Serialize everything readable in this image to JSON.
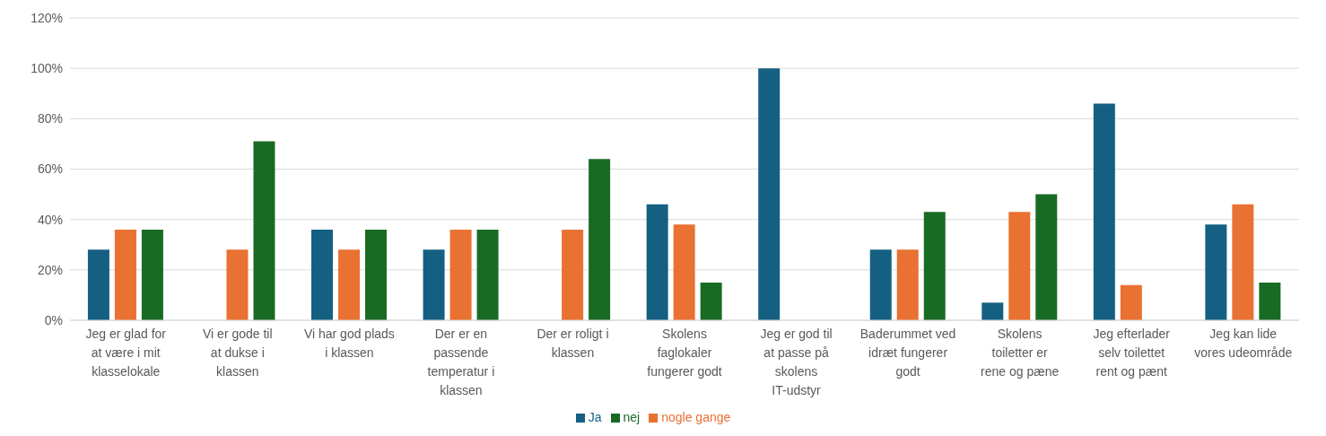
{
  "chart_data": {
    "type": "bar",
    "categories": [
      "Jeg er glad for at være i mit klasselokale",
      "Vi er gode til at dukse i klassen",
      "Vi har god plads i klassen",
      "Der er en passende temperatur i klassen",
      "Der er roligt i klassen",
      "Skolens faglokaler fungerer godt",
      "Jeg er god til at passe på skolens IT-udstyr",
      "Baderummet ved idræt fungerer godt",
      "Skolens toiletter er rene og pæne",
      "Jeg efterlader selv toilettet rent og pænt",
      "Jeg kan lide vores udeområde"
    ],
    "series": [
      {
        "name": "Ja",
        "color": "#156082",
        "values": [
          28,
          0,
          36,
          28,
          0,
          46,
          100,
          28,
          7,
          86,
          38
        ]
      },
      {
        "name": "nogle gange",
        "color": "#e97132",
        "values": [
          36,
          28,
          28,
          36,
          36,
          38,
          0,
          28,
          43,
          14,
          46
        ]
      },
      {
        "name": "nej",
        "color": "#196b24",
        "values": [
          36,
          71,
          36,
          36,
          64,
          15,
          0,
          43,
          50,
          0,
          15
        ]
      }
    ],
    "ylim": [
      0,
      120
    ],
    "yticks": [
      {
        "value": 0,
        "label": "0%"
      },
      {
        "value": 20,
        "label": "20%"
      },
      {
        "value": 40,
        "label": "40%"
      },
      {
        "value": 60,
        "label": "60%"
      },
      {
        "value": 80,
        "label": "80%"
      },
      {
        "value": 100,
        "label": "100%"
      },
      {
        "value": 120,
        "label": "120%"
      }
    ],
    "grid": "y",
    "legend": "bottom"
  }
}
